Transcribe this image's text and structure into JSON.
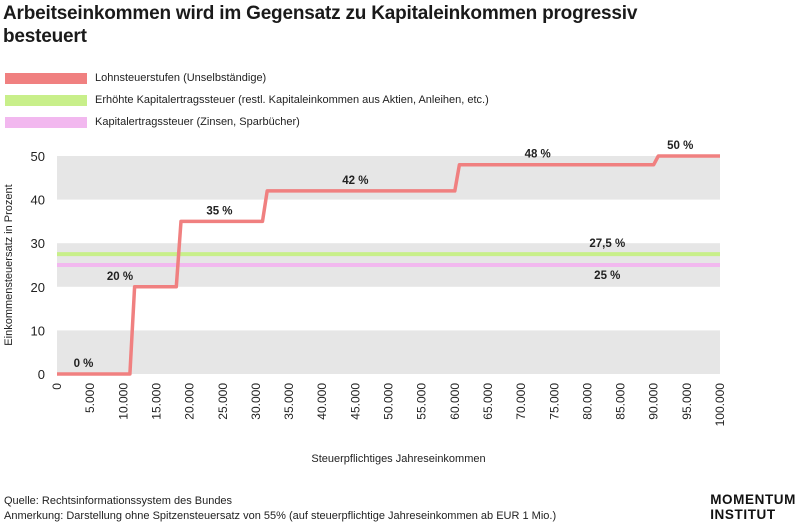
{
  "title": "Arbeitseinkommen wird im Gegensatz zu Kapitaleinkommen progressiv besteuert",
  "legend": [
    {
      "label": "Lohnsteuerstufen (Unselbständige)",
      "color": "#f08080"
    },
    {
      "label": "Erhöhte Kapitalertragssteuer (restl. Kapitaleinkommen aus Aktien, Anleihen, etc.)",
      "color": "#c8ef8a"
    },
    {
      "label": "Kapitalertragssteuer (Zinsen, Sparbücher)",
      "color": "#f2b8ef"
    }
  ],
  "chart_data": {
    "type": "line",
    "title": "Arbeitseinkommen wird im Gegensatz zu Kapitaleinkommen progressiv besteuert",
    "xlabel": "Steuerpflichtiges Jahreseinkommen",
    "ylabel": "Einkommensteuersatz in Prozent",
    "xlim": [
      0,
      100000
    ],
    "ylim": [
      0,
      50
    ],
    "yticks": [
      0,
      10,
      20,
      30,
      40,
      50
    ],
    "xtick_labels": [
      "0",
      "5.000",
      "10.000",
      "15.000",
      "20.000",
      "25.000",
      "30.000",
      "35.000",
      "40.000",
      "45.000",
      "50.000",
      "55.000",
      "60.000",
      "65.000",
      "70.000",
      "75.000",
      "80.000",
      "85.000",
      "90.000",
      "95.000",
      "100.000"
    ],
    "series": [
      {
        "name": "Lohnsteuerstufen (Unselbständige)",
        "color": "#f08080",
        "step": true,
        "x": [
          0,
          11000,
          11700,
          18000,
          18700,
          31000,
          31700,
          60000,
          60700,
          90000,
          90700,
          100000
        ],
        "y": [
          0,
          0,
          20,
          20,
          35,
          35,
          42,
          42,
          48,
          48,
          50,
          50
        ]
      },
      {
        "name": "Erhöhte Kapitalertragssteuer (restl. Kapitaleinkommen aus Aktien, Anleihen, etc.)",
        "color": "#c8ef8a",
        "x": [
          0,
          100000
        ],
        "y": [
          27.5,
          27.5
        ]
      },
      {
        "name": "Kapitalertragssteuer (Zinsen, Sparbücher)",
        "color": "#f2b8ef",
        "x": [
          0,
          100000
        ],
        "y": [
          25,
          25
        ]
      }
    ],
    "annotations": [
      {
        "text": "0 %",
        "x": 4000,
        "y": 0
      },
      {
        "text": "20 %",
        "x": 9500,
        "y": 20
      },
      {
        "text": "35 %",
        "x": 24500,
        "y": 35
      },
      {
        "text": "42 %",
        "x": 45000,
        "y": 42
      },
      {
        "text": "48 %",
        "x": 72500,
        "y": 48
      },
      {
        "text": "50 %",
        "x": 94000,
        "y": 50
      },
      {
        "text": "27,5 %",
        "x": 83000,
        "y": 27.5
      },
      {
        "text": "25 %",
        "x": 83000,
        "y": 25
      }
    ]
  },
  "footer": {
    "source": "Quelle: Rechtsinformationssystem des Bundes",
    "note": "Anmerkung: Darstellung ohne Spitzensteuersatz von 55% (auf steuerpflichtige Jahreseinkommen ab EUR 1 Mio.)"
  },
  "logo": {
    "line1": "MOMENTUM",
    "line2": "INSTITUT"
  }
}
